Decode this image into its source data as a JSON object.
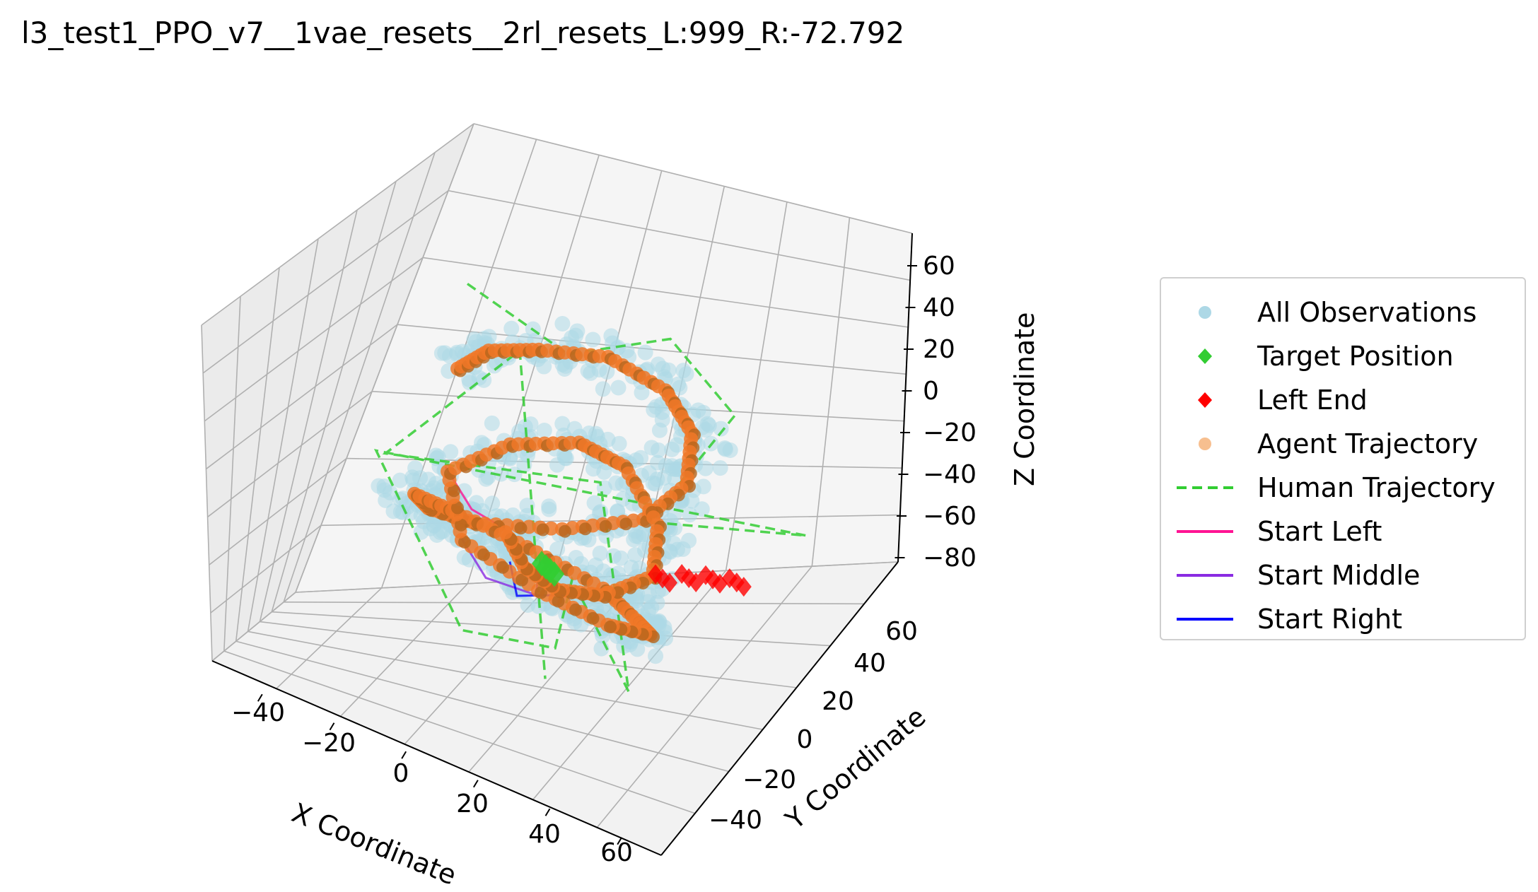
{
  "title": "l3_test1_PPO_v7__1vae_resets__2rl_resets_L:999_R:-72.792",
  "colors": {
    "observations": "#add8e6",
    "target": "#32cd32",
    "left_end": "#ff0000",
    "agent": "#f4a460",
    "agent_dark": "#b5651d",
    "human": "#32cd32",
    "start_left": "#ff1493",
    "start_middle": "#8a2be2",
    "start_right": "#0000ff"
  },
  "chart_data": {
    "type": "scatter",
    "projection": "3d",
    "xlabel": "X Coordinate",
    "ylabel": "Y Coordinate",
    "zlabel": "Z Coordinate",
    "xticks": [
      "−40",
      "−20",
      "0",
      "20",
      "40",
      "60"
    ],
    "yticks": [
      "−40",
      "−20",
      "0",
      "20",
      "40",
      "60"
    ],
    "zticks": [
      "60",
      "40",
      "20",
      "0",
      "−20",
      "−40",
      "−60",
      "−80"
    ],
    "xlim": [
      -55,
      65
    ],
    "ylim": [
      -45,
      70
    ],
    "zlim": [
      -85,
      70
    ],
    "grid": true,
    "legend_position": "right",
    "legend": [
      {
        "label": "All Observations",
        "marker": "circle",
        "color_key": "observations"
      },
      {
        "label": "Target Position",
        "marker": "diamond",
        "color_key": "target"
      },
      {
        "label": "Left End",
        "marker": "diamond",
        "color_key": "left_end"
      },
      {
        "label": "Agent Trajectory",
        "marker": "circle-faded",
        "color_key": "agent"
      },
      {
        "label": "Human Trajectory",
        "marker": "dashed-line",
        "color_key": "human"
      },
      {
        "label": "Start Left",
        "marker": "line",
        "color_key": "start_left"
      },
      {
        "label": "Start Middle",
        "marker": "line",
        "color_key": "start_middle"
      },
      {
        "label": "Start Right",
        "marker": "line",
        "color_key": "start_right"
      }
    ],
    "series": [
      {
        "name": "Target Position",
        "points": [
          [
            0,
            0,
            -45
          ]
        ]
      },
      {
        "name": "Left End",
        "points": [
          [
            25,
            5,
            -30
          ],
          [
            30,
            8,
            -28
          ],
          [
            35,
            10,
            -26
          ],
          [
            40,
            12,
            -25
          ]
        ]
      },
      {
        "name": "Agent Trajectory",
        "points": [
          [
            -30,
            10,
            30
          ],
          [
            -25,
            15,
            40
          ],
          [
            -15,
            20,
            45
          ],
          [
            0,
            25,
            50
          ],
          [
            15,
            25,
            45
          ],
          [
            25,
            20,
            35
          ],
          [
            30,
            10,
            20
          ],
          [
            25,
            0,
            5
          ],
          [
            10,
            -10,
            -5
          ],
          [
            -10,
            -15,
            -15
          ],
          [
            -25,
            -10,
            -25
          ],
          [
            -35,
            0,
            -35
          ],
          [
            -30,
            10,
            -50
          ],
          [
            -15,
            15,
            -60
          ],
          [
            5,
            15,
            -65
          ],
          [
            20,
            5,
            -60
          ],
          [
            30,
            -5,
            -50
          ],
          [
            25,
            -15,
            -40
          ],
          [
            10,
            -20,
            -30
          ],
          [
            -10,
            -20,
            -20
          ],
          [
            -20,
            -10,
            0
          ],
          [
            -10,
            0,
            15
          ],
          [
            5,
            5,
            25
          ],
          [
            20,
            0,
            30
          ],
          [
            35,
            -10,
            20
          ],
          [
            40,
            -20,
            5
          ],
          [
            30,
            -25,
            -10
          ],
          [
            15,
            -20,
            -25
          ],
          [
            0,
            -10,
            -35
          ],
          [
            -15,
            5,
            -40
          ]
        ]
      },
      {
        "name": "Human Trajectory",
        "points": [
          [
            -40,
            30,
            50
          ],
          [
            -20,
            40,
            20
          ],
          [
            10,
            35,
            60
          ],
          [
            30,
            30,
            40
          ],
          [
            20,
            10,
            -10
          ],
          [
            55,
            20,
            5
          ],
          [
            -45,
            0,
            -20
          ],
          [
            -10,
            -20,
            -70
          ],
          [
            5,
            -5,
            -80
          ],
          [
            0,
            10,
            -60
          ],
          [
            40,
            -30,
            -50
          ],
          [
            20,
            -10,
            30
          ],
          [
            -30,
            -20,
            10
          ],
          [
            -20,
            20,
            40
          ],
          [
            15,
            -25,
            -70
          ]
        ]
      }
    ]
  }
}
